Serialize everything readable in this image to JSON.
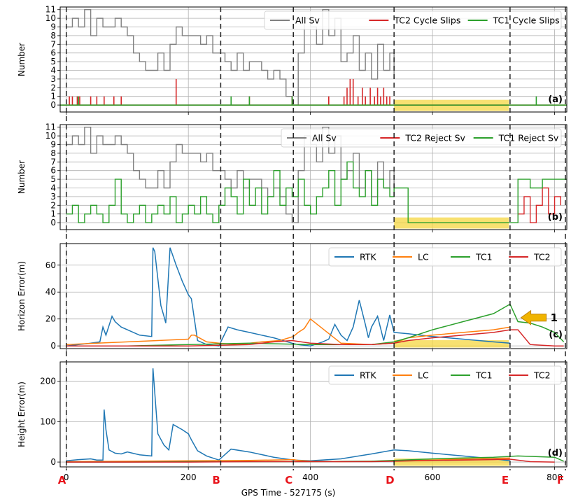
{
  "figure": {
    "xlabel": "GPS Time - 527175 (s)",
    "xlim": [
      -10,
      820
    ],
    "xticks": [
      0,
      200,
      400,
      600,
      800
    ],
    "event_markers": [
      {
        "label": "A",
        "x": 0
      },
      {
        "label": "B",
        "x": 253
      },
      {
        "label": "C",
        "x": 372
      },
      {
        "label": "D",
        "x": 537
      },
      {
        "label": "E",
        "x": 727
      },
      {
        "label": "F",
        "x": 820
      }
    ],
    "colors": {
      "all_sv": "#808080",
      "rtk": "#1f77b4",
      "lc": "#ff7f0e",
      "tc1": "#2ca02c",
      "tc2": "#d62728",
      "shade": "#f5d742",
      "arrow": "#f0b400"
    },
    "shaded_region": [
      537,
      725
    ],
    "annotation": {
      "text": "1",
      "x": 745,
      "y": 21
    }
  },
  "chart_data": [
    {
      "type": "line",
      "panel_label": "(a)",
      "ylabel": "Number",
      "ylim": [
        -0.8,
        11.3
      ],
      "yticks": [
        0,
        1,
        2,
        3,
        4,
        5,
        6,
        7,
        8,
        9,
        10,
        11
      ],
      "legend_position": "top-right",
      "series": [
        {
          "name": "All Sv",
          "color": "#808080",
          "x": [
            0,
            10,
            20,
            30,
            40,
            50,
            60,
            70,
            80,
            90,
            100,
            110,
            120,
            130,
            140,
            150,
            160,
            170,
            180,
            190,
            200,
            210,
            220,
            230,
            240,
            250,
            260,
            270,
            280,
            290,
            300,
            310,
            320,
            330,
            340,
            350,
            360,
            370,
            380,
            390,
            400,
            410,
            420,
            430,
            440,
            450,
            460,
            470,
            480,
            490,
            500,
            510,
            520,
            530,
            537
          ],
          "y": [
            9,
            10,
            9,
            11,
            8,
            10,
            9,
            9,
            10,
            9,
            8,
            6,
            5,
            4,
            4,
            6,
            4,
            7,
            9,
            8,
            8,
            8,
            7,
            8,
            6,
            6,
            5,
            4,
            6,
            4,
            5,
            5,
            4,
            3,
            4,
            3,
            1,
            0,
            6,
            10,
            9,
            7,
            11,
            8,
            10,
            5,
            6,
            8,
            4,
            6,
            3,
            7,
            4,
            6,
            3
          ]
        },
        {
          "name": "TC2 Cycle Slips",
          "color": "#d62728",
          "x": [
            5,
            10,
            18,
            22,
            40,
            50,
            62,
            78,
            90,
            180,
            300,
            370,
            430,
            455,
            460,
            465,
            470,
            478,
            485,
            490,
            498,
            505,
            510,
            515,
            520,
            525,
            530
          ],
          "y": [
            1,
            1,
            1,
            1,
            1,
            1,
            1,
            1,
            1,
            3,
            1,
            1,
            1,
            1,
            2,
            3,
            3,
            1,
            2,
            1,
            2,
            1,
            2,
            1,
            2,
            1,
            1
          ]
        },
        {
          "name": "TC1 Cycle Slips",
          "color": "#2ca02c",
          "x": [
            20,
            270,
            300,
            370,
            770
          ],
          "y": [
            1,
            1,
            1,
            1,
            1
          ]
        }
      ]
    },
    {
      "type": "line",
      "panel_label": "(b)",
      "ylabel": "Number",
      "ylim": [
        -0.8,
        11.3
      ],
      "yticks": [
        0,
        1,
        2,
        3,
        4,
        5,
        6,
        7,
        8,
        9,
        10,
        11
      ],
      "legend_position": "top-right",
      "series": [
        {
          "name": "All Sv",
          "color": "#808080",
          "x": [
            0,
            10,
            20,
            30,
            40,
            50,
            60,
            70,
            80,
            90,
            100,
            110,
            120,
            130,
            140,
            150,
            160,
            170,
            180,
            190,
            200,
            210,
            220,
            230,
            240,
            250,
            260,
            270,
            280,
            290,
            300,
            310,
            320,
            330,
            340,
            350,
            360,
            370,
            380,
            390,
            400,
            410,
            420,
            430,
            440,
            450,
            460,
            470,
            480,
            490,
            500,
            510,
            520,
            530,
            537
          ],
          "y": [
            9,
            10,
            9,
            11,
            8,
            10,
            9,
            9,
            10,
            9,
            8,
            6,
            5,
            4,
            4,
            6,
            4,
            7,
            9,
            8,
            8,
            8,
            7,
            8,
            6,
            6,
            5,
            4,
            6,
            4,
            5,
            5,
            4,
            3,
            4,
            3,
            1,
            0,
            6,
            10,
            9,
            7,
            11,
            8,
            10,
            5,
            6,
            8,
            4,
            6,
            3,
            7,
            4,
            6,
            3
          ]
        },
        {
          "name": "TC2 Reject Sv",
          "color": "#d62728",
          "x": [
            740,
            750,
            760,
            770,
            780,
            790,
            800,
            810
          ],
          "y": [
            1,
            3,
            0,
            2,
            4,
            1,
            3,
            2
          ]
        },
        {
          "name": "TC1 Reject Sv",
          "color": "#2ca02c",
          "x": [
            0,
            10,
            20,
            30,
            40,
            50,
            60,
            70,
            80,
            90,
            100,
            110,
            120,
            130,
            140,
            150,
            160,
            170,
            180,
            190,
            200,
            210,
            220,
            230,
            240,
            250,
            260,
            270,
            280,
            290,
            300,
            310,
            320,
            330,
            340,
            350,
            360,
            370,
            380,
            390,
            400,
            410,
            420,
            430,
            440,
            450,
            460,
            470,
            480,
            490,
            500,
            510,
            520,
            530,
            537,
            560,
            600,
            650,
            700,
            725,
            740,
            760,
            780,
            800,
            820
          ],
          "y": [
            1,
            2,
            0,
            1,
            2,
            1,
            0,
            2,
            5,
            1,
            0,
            1,
            2,
            0,
            1,
            2,
            1,
            3,
            0,
            1,
            2,
            1,
            3,
            1,
            0,
            2,
            4,
            3,
            1,
            5,
            2,
            4,
            1,
            3,
            6,
            2,
            4,
            3,
            5,
            2,
            1,
            3,
            4,
            6,
            2,
            5,
            7,
            4,
            3,
            6,
            2,
            5,
            4,
            3,
            4,
            0,
            0,
            0,
            0,
            0,
            5,
            4,
            5,
            5,
            5
          ]
        }
      ]
    },
    {
      "type": "line",
      "panel_label": "(c)",
      "ylabel": "Horizon Error(m)",
      "ylim": [
        -2,
        76
      ],
      "yticks": [
        0,
        20,
        40,
        60
      ],
      "legend_position": "top-right",
      "series": [
        {
          "name": "RTK",
          "color": "#1f77b4",
          "x": [
            0,
            20,
            40,
            55,
            60,
            65,
            75,
            80,
            90,
            100,
            120,
            140,
            142,
            145,
            155,
            160,
            163,
            170,
            180,
            190,
            200,
            205,
            215,
            230,
            250,
            265,
            280,
            300,
            320,
            340,
            355,
            370,
            380,
            400,
            420,
            430,
            440,
            450,
            460,
            470,
            480,
            490,
            495,
            500,
            510,
            520,
            530,
            537,
            560,
            600,
            650,
            700,
            727
          ],
          "y": [
            0,
            1,
            2,
            3,
            14,
            8,
            22,
            18,
            14,
            12,
            8,
            7,
            73,
            70,
            30,
            22,
            17,
            73,
            60,
            48,
            38,
            35,
            4,
            1,
            0,
            14,
            12,
            10,
            8,
            6,
            4,
            2,
            1,
            0,
            3,
            5,
            16,
            8,
            4,
            14,
            34,
            16,
            6,
            14,
            22,
            4,
            23,
            10,
            9,
            7,
            5,
            3,
            2
          ]
        },
        {
          "name": "LC",
          "color": "#ff7f0e",
          "x": [
            0,
            50,
            100,
            150,
            200,
            205,
            210,
            230,
            250,
            280,
            320,
            350,
            372,
            380,
            390,
            400,
            450,
            500,
            537,
            560,
            600,
            650,
            700,
            727
          ],
          "y": [
            1,
            2,
            3,
            4,
            5,
            8,
            8,
            3,
            2,
            1,
            3,
            4,
            7,
            10,
            13,
            20,
            2,
            1,
            2,
            6,
            8,
            10,
            12,
            14
          ]
        },
        {
          "name": "TC1",
          "color": "#2ca02c",
          "x": [
            0,
            100,
            200,
            300,
            400,
            500,
            537,
            560,
            600,
            650,
            700,
            727,
            740,
            760,
            780,
            800,
            815
          ],
          "y": [
            0,
            0,
            1,
            2,
            1,
            1,
            3,
            6,
            12,
            18,
            24,
            31,
            18,
            17,
            14,
            10,
            3
          ]
        },
        {
          "name": "TC2",
          "color": "#d62728",
          "x": [
            0,
            100,
            200,
            300,
            340,
            370,
            400,
            450,
            500,
            537,
            560,
            600,
            650,
            700,
            727,
            740,
            760,
            800,
            815
          ],
          "y": [
            0,
            0,
            0,
            1,
            3,
            4,
            2,
            1,
            1,
            2,
            4,
            6,
            8,
            10,
            12,
            12,
            1,
            0,
            0
          ]
        }
      ]
    },
    {
      "type": "line",
      "panel_label": "(d)",
      "ylabel": "Height Error(m)",
      "ylim": [
        -12,
        248
      ],
      "yticks": [
        0,
        100,
        200
      ],
      "legend_position": "top-right",
      "series": [
        {
          "name": "RTK",
          "color": "#1f77b4",
          "x": [
            0,
            20,
            40,
            50,
            60,
            62,
            65,
            70,
            80,
            90,
            100,
            120,
            140,
            142,
            146,
            150,
            160,
            168,
            175,
            190,
            200,
            205,
            215,
            230,
            250,
            270,
            300,
            340,
            372,
            400,
            450,
            500,
            537,
            560,
            600,
            650,
            700,
            727
          ],
          "y": [
            3,
            6,
            8,
            5,
            5,
            130,
            80,
            30,
            22,
            20,
            25,
            18,
            15,
            232,
            150,
            70,
            42,
            30,
            93,
            80,
            70,
            55,
            28,
            15,
            5,
            32,
            25,
            12,
            5,
            3,
            8,
            20,
            30,
            28,
            22,
            15,
            8,
            3
          ]
        },
        {
          "name": "LC",
          "color": "#ff7f0e",
          "x": [
            0,
            100,
            200,
            300,
            372,
            380,
            400,
            450,
            500,
            537,
            600,
            650,
            700,
            727
          ],
          "y": [
            1,
            2,
            3,
            4,
            6,
            4,
            2,
            1,
            2,
            3,
            5,
            7,
            9,
            10
          ]
        },
        {
          "name": "TC1",
          "color": "#2ca02c",
          "x": [
            0,
            100,
            200,
            300,
            400,
            500,
            537,
            600,
            650,
            700,
            727,
            740,
            760,
            780,
            800,
            815
          ],
          "y": [
            0,
            0,
            1,
            1,
            1,
            2,
            4,
            8,
            10,
            12,
            14,
            15,
            14,
            13,
            12,
            2
          ]
        },
        {
          "name": "TC2",
          "color": "#d62728",
          "x": [
            0,
            100,
            200,
            300,
            400,
            500,
            537,
            600,
            650,
            700,
            727,
            760,
            800
          ],
          "y": [
            0,
            0,
            0,
            1,
            1,
            1,
            2,
            4,
            5,
            6,
            7,
            1,
            0
          ]
        }
      ]
    }
  ]
}
